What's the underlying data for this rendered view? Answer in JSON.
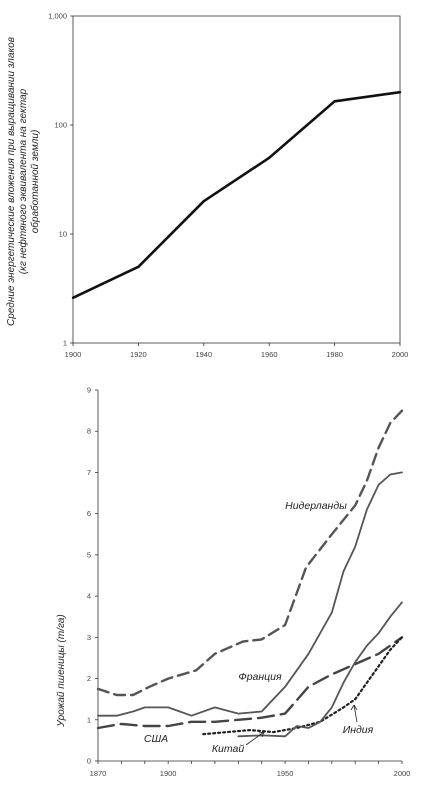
{
  "chart_data": [
    {
      "type": "line",
      "title": "",
      "xlabel": "",
      "ylabel_lines": [
        "Средние энергетические вложения при выращивании злаков",
        "(кг нефтяного эквивалента на гектар",
        "обработанной земли)"
      ],
      "yscale": "log",
      "xlim": [
        1900,
        2000
      ],
      "ylim": [
        1,
        1000
      ],
      "x_ticks": [
        "1900",
        "1920",
        "1940",
        "1960",
        "1980",
        "2000"
      ],
      "y_ticks": [
        "1",
        "10",
        "100",
        "1,000"
      ],
      "x": [
        1900,
        1920,
        1940,
        1960,
        1980,
        2000
      ],
      "values": [
        2.6,
        5,
        20,
        50,
        165,
        200
      ],
      "grid": false
    },
    {
      "type": "line",
      "title": "",
      "xlabel": "",
      "ylabel": "Урожай пшеницы (т/га)",
      "xlim": [
        1870,
        2000
      ],
      "ylim": [
        0,
        9
      ],
      "x_ticks": [
        "1870",
        "1900",
        "1950",
        "2000"
      ],
      "y_ticks": [
        "0",
        "1",
        "2",
        "3",
        "4",
        "5",
        "6",
        "7",
        "8",
        "9"
      ],
      "grid": false,
      "series": [
        {
          "name": "Нидерланды",
          "style": "dashed",
          "x": [
            1870,
            1878,
            1885,
            1892,
            1900,
            1912,
            1920,
            1932,
            1940,
            1950,
            1959,
            1970,
            1980,
            1985,
            1990,
            1995,
            2000
          ],
          "values": [
            1.75,
            1.6,
            1.6,
            1.8,
            2.0,
            2.2,
            2.6,
            2.9,
            2.95,
            3.3,
            4.7,
            5.5,
            6.2,
            6.8,
            7.6,
            8.2,
            8.5
          ]
        },
        {
          "name": "Франция",
          "style": "solid-gray",
          "x": [
            1870,
            1878,
            1885,
            1890,
            1900,
            1910,
            1920,
            1930,
            1940,
            1950,
            1960,
            1970,
            1975,
            1980,
            1985,
            1990,
            1995,
            2000
          ],
          "values": [
            1.1,
            1.1,
            1.2,
            1.3,
            1.3,
            1.1,
            1.3,
            1.15,
            1.2,
            1.8,
            2.6,
            3.6,
            4.6,
            5.2,
            6.1,
            6.7,
            6.95,
            7.0
          ]
        },
        {
          "name": "США",
          "style": "long-dash",
          "x": [
            1870,
            1880,
            1890,
            1900,
            1910,
            1920,
            1930,
            1940,
            1950,
            1960,
            1970,
            1980,
            1990,
            2000
          ],
          "values": [
            0.8,
            0.9,
            0.85,
            0.85,
            0.95,
            0.95,
            1.0,
            1.05,
            1.15,
            1.8,
            2.1,
            2.35,
            2.6,
            3.0
          ]
        },
        {
          "name": "Китай",
          "style": "dotted",
          "x": [
            1915,
            1925,
            1935,
            1945,
            1955,
            1965,
            1975,
            1980,
            1985,
            1990,
            1995,
            2000
          ],
          "values": [
            0.65,
            0.7,
            0.75,
            0.7,
            0.8,
            0.95,
            1.3,
            1.5,
            1.9,
            2.3,
            2.7,
            3.0
          ]
        },
        {
          "name": "Индия",
          "style": "solid-gray",
          "x": [
            1930,
            1940,
            1950,
            1955,
            1960,
            1965,
            1970,
            1975,
            1980,
            1985,
            1990,
            1995,
            2000
          ],
          "values": [
            0.6,
            0.62,
            0.6,
            0.85,
            0.8,
            0.95,
            1.3,
            1.9,
            2.4,
            2.8,
            3.1,
            3.5,
            3.85
          ]
        }
      ]
    }
  ]
}
